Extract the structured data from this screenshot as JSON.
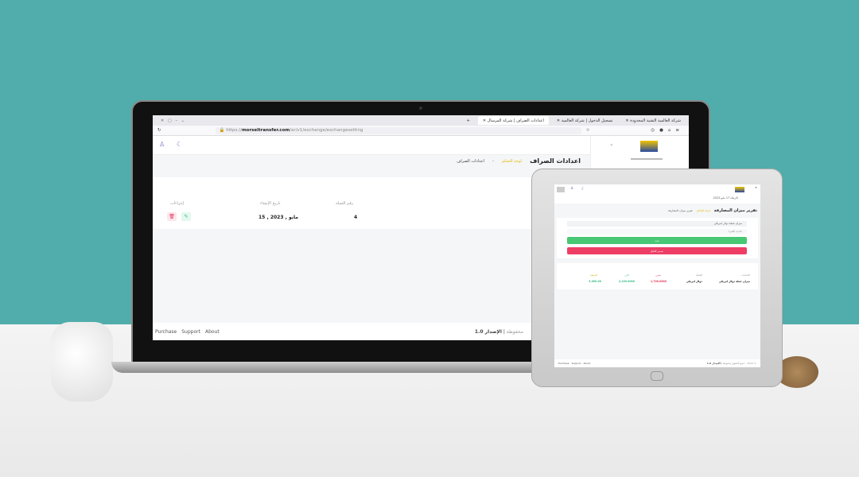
{
  "browser": {
    "tabs": [
      {
        "label": "اعدادات الصراف | شركة المرسال"
      },
      {
        "label": "تسجيل الدخول | شركة العالمية"
      },
      {
        "label": "شركة العالمية التقنية المحدودة"
      }
    ],
    "url_prefix": "https://",
    "url_domain": "morseltransfer.com",
    "url_path": "/ar/v1/exchange/exchangesetting"
  },
  "laptop_app": {
    "page_title": "اعدادات الصراف",
    "breadcrumb": {
      "home": "لوحة التحكم",
      "current": "اعدادات الصراف"
    },
    "table": {
      "headers": [
        "رقم العملة",
        "تاريخ الإنشاء",
        "إجراءات"
      ],
      "rows": [
        {
          "currency_no": "4",
          "created": "15 , مايو , 2023"
        }
      ]
    },
    "footer": {
      "links": [
        "Purchase",
        "Support",
        "About"
      ],
      "version": "الإصدار 1.0",
      "rights": "محفوظة"
    }
  },
  "tablet_app": {
    "date_line": "الاربعاء 17 مايو 2023",
    "page_title": "تقرير ميزان المصارفة",
    "breadcrumb": {
      "home": "لوحة التحكم",
      "current": "تقرير ميزان المصارفة"
    },
    "select_value": "ميزان عملة دولار امريكي",
    "input_placeholder": "تحديد الفترة",
    "search_button": "بحث",
    "export_button": "تصدير النتائج",
    "table": {
      "headers": [
        "الحساب",
        "العملة",
        "مدين",
        "دائن",
        "الرصيد"
      ],
      "header_colors": [
        "#999999",
        "#999999",
        "#e03a5e",
        "#3bbf8a",
        "#e6b800"
      ],
      "rows": [
        {
          "account": "ميزان عملة دولار امريكي",
          "currency": "دولار امريكي",
          "debit": "1,700.0000",
          "credit": "2,100.0000",
          "balance": "5,000.00"
        }
      ]
    },
    "footer": {
      "links": [
        "Purchase",
        "Support",
        "About"
      ],
      "version": "الإصدار 1.0",
      "rights": "© 2023 - جميع الحقوق محفوظة"
    }
  },
  "colors": {
    "wall": "#50adab",
    "accent_gold": "#e6b800",
    "green": "#48c774",
    "red": "#ee3e66"
  }
}
